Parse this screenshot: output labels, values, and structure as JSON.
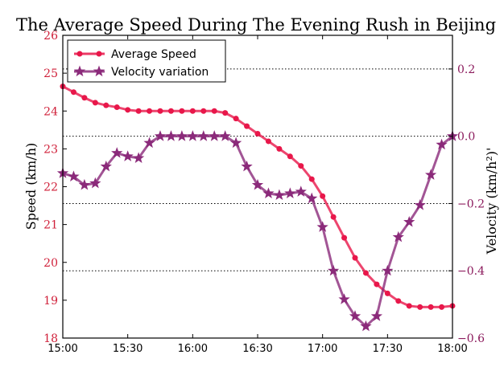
{
  "chart_data": {
    "type": "line",
    "title": "The Average Speed During The Evening Rush in Beijing",
    "xlabel": "",
    "ylabel_left": "Speed (km/h)",
    "ylabel_right": "Velocity (km/h²)'",
    "x_tick_labels": [
      "15:00",
      "15:30",
      "16:00",
      "16:30",
      "17:00",
      "17:30",
      "18:00"
    ],
    "x_range_minutes": [
      0,
      180
    ],
    "y_left_range": [
      18,
      26
    ],
    "y_left_ticks": [
      18,
      19,
      20,
      21,
      22,
      23,
      24,
      25,
      26
    ],
    "y_right_range": [
      -0.6,
      0.3
    ],
    "y_right_ticks": [
      -0.6,
      -0.4,
      -0.2,
      0.0,
      0.2
    ],
    "y_right_tick_labels": [
      "−0.6",
      "−0.4",
      "−0.2",
      "0.0",
      "0.2"
    ],
    "grid": "horizontal dotted lines at right-axis ticks",
    "legend_position": "top-left",
    "x_minutes": [
      0,
      5,
      10,
      15,
      20,
      25,
      30,
      35,
      40,
      45,
      50,
      55,
      60,
      65,
      70,
      75,
      80,
      85,
      90,
      95,
      100,
      105,
      110,
      115,
      120,
      125,
      130,
      135,
      140,
      145,
      150,
      155,
      160,
      165,
      170,
      175,
      180
    ],
    "series": [
      {
        "name": "Average Speed",
        "axis": "left",
        "color": "#e8174a",
        "marker": "circle",
        "values": [
          24.65,
          24.5,
          24.35,
          24.22,
          24.15,
          24.1,
          24.03,
          24.0,
          24.0,
          24.0,
          24.0,
          24.0,
          24.0,
          24.0,
          24.0,
          23.95,
          23.8,
          23.6,
          23.4,
          23.2,
          23.0,
          22.8,
          22.55,
          22.2,
          21.75,
          21.2,
          20.65,
          20.12,
          19.72,
          19.42,
          19.18,
          18.98,
          18.85,
          18.82,
          18.82,
          18.82,
          18.85
        ]
      },
      {
        "name": "Velocity variation",
        "axis": "right",
        "color": "#8b2a7a",
        "marker": "star",
        "values": [
          -0.11,
          -0.12,
          -0.145,
          -0.14,
          -0.09,
          -0.05,
          -0.06,
          -0.065,
          -0.02,
          0.0,
          0.0,
          0.0,
          0.0,
          0.0,
          0.0,
          0.0,
          -0.02,
          -0.09,
          -0.145,
          -0.17,
          -0.175,
          -0.17,
          -0.165,
          -0.185,
          -0.27,
          -0.4,
          -0.485,
          -0.535,
          -0.565,
          -0.535,
          -0.4,
          -0.3,
          -0.255,
          -0.205,
          -0.115,
          -0.025,
          0.0
        ]
      }
    ]
  }
}
